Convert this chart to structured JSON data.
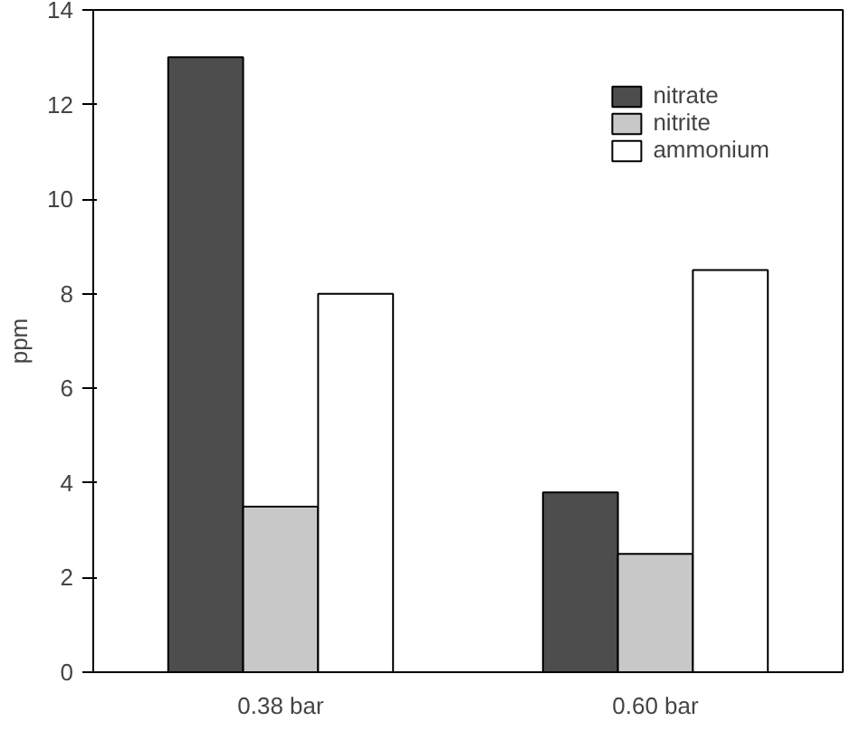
{
  "chart_data": {
    "type": "bar",
    "ylabel": "ppm",
    "categories": [
      "0.38 bar",
      "0.60 bar"
    ],
    "series": [
      {
        "name": "nitrate",
        "color": "#4d4d4d",
        "values": [
          13,
          3.8
        ]
      },
      {
        "name": "nitrite",
        "color": "#c8c8c8",
        "values": [
          3.5,
          2.5
        ]
      },
      {
        "name": "ammonium",
        "color": "#ffffff",
        "values": [
          8,
          8.5
        ]
      }
    ],
    "ylim": [
      0,
      14
    ],
    "yticks": [
      0,
      2,
      4,
      6,
      8,
      10,
      12,
      14
    ],
    "grid": false,
    "legend": "top right"
  }
}
